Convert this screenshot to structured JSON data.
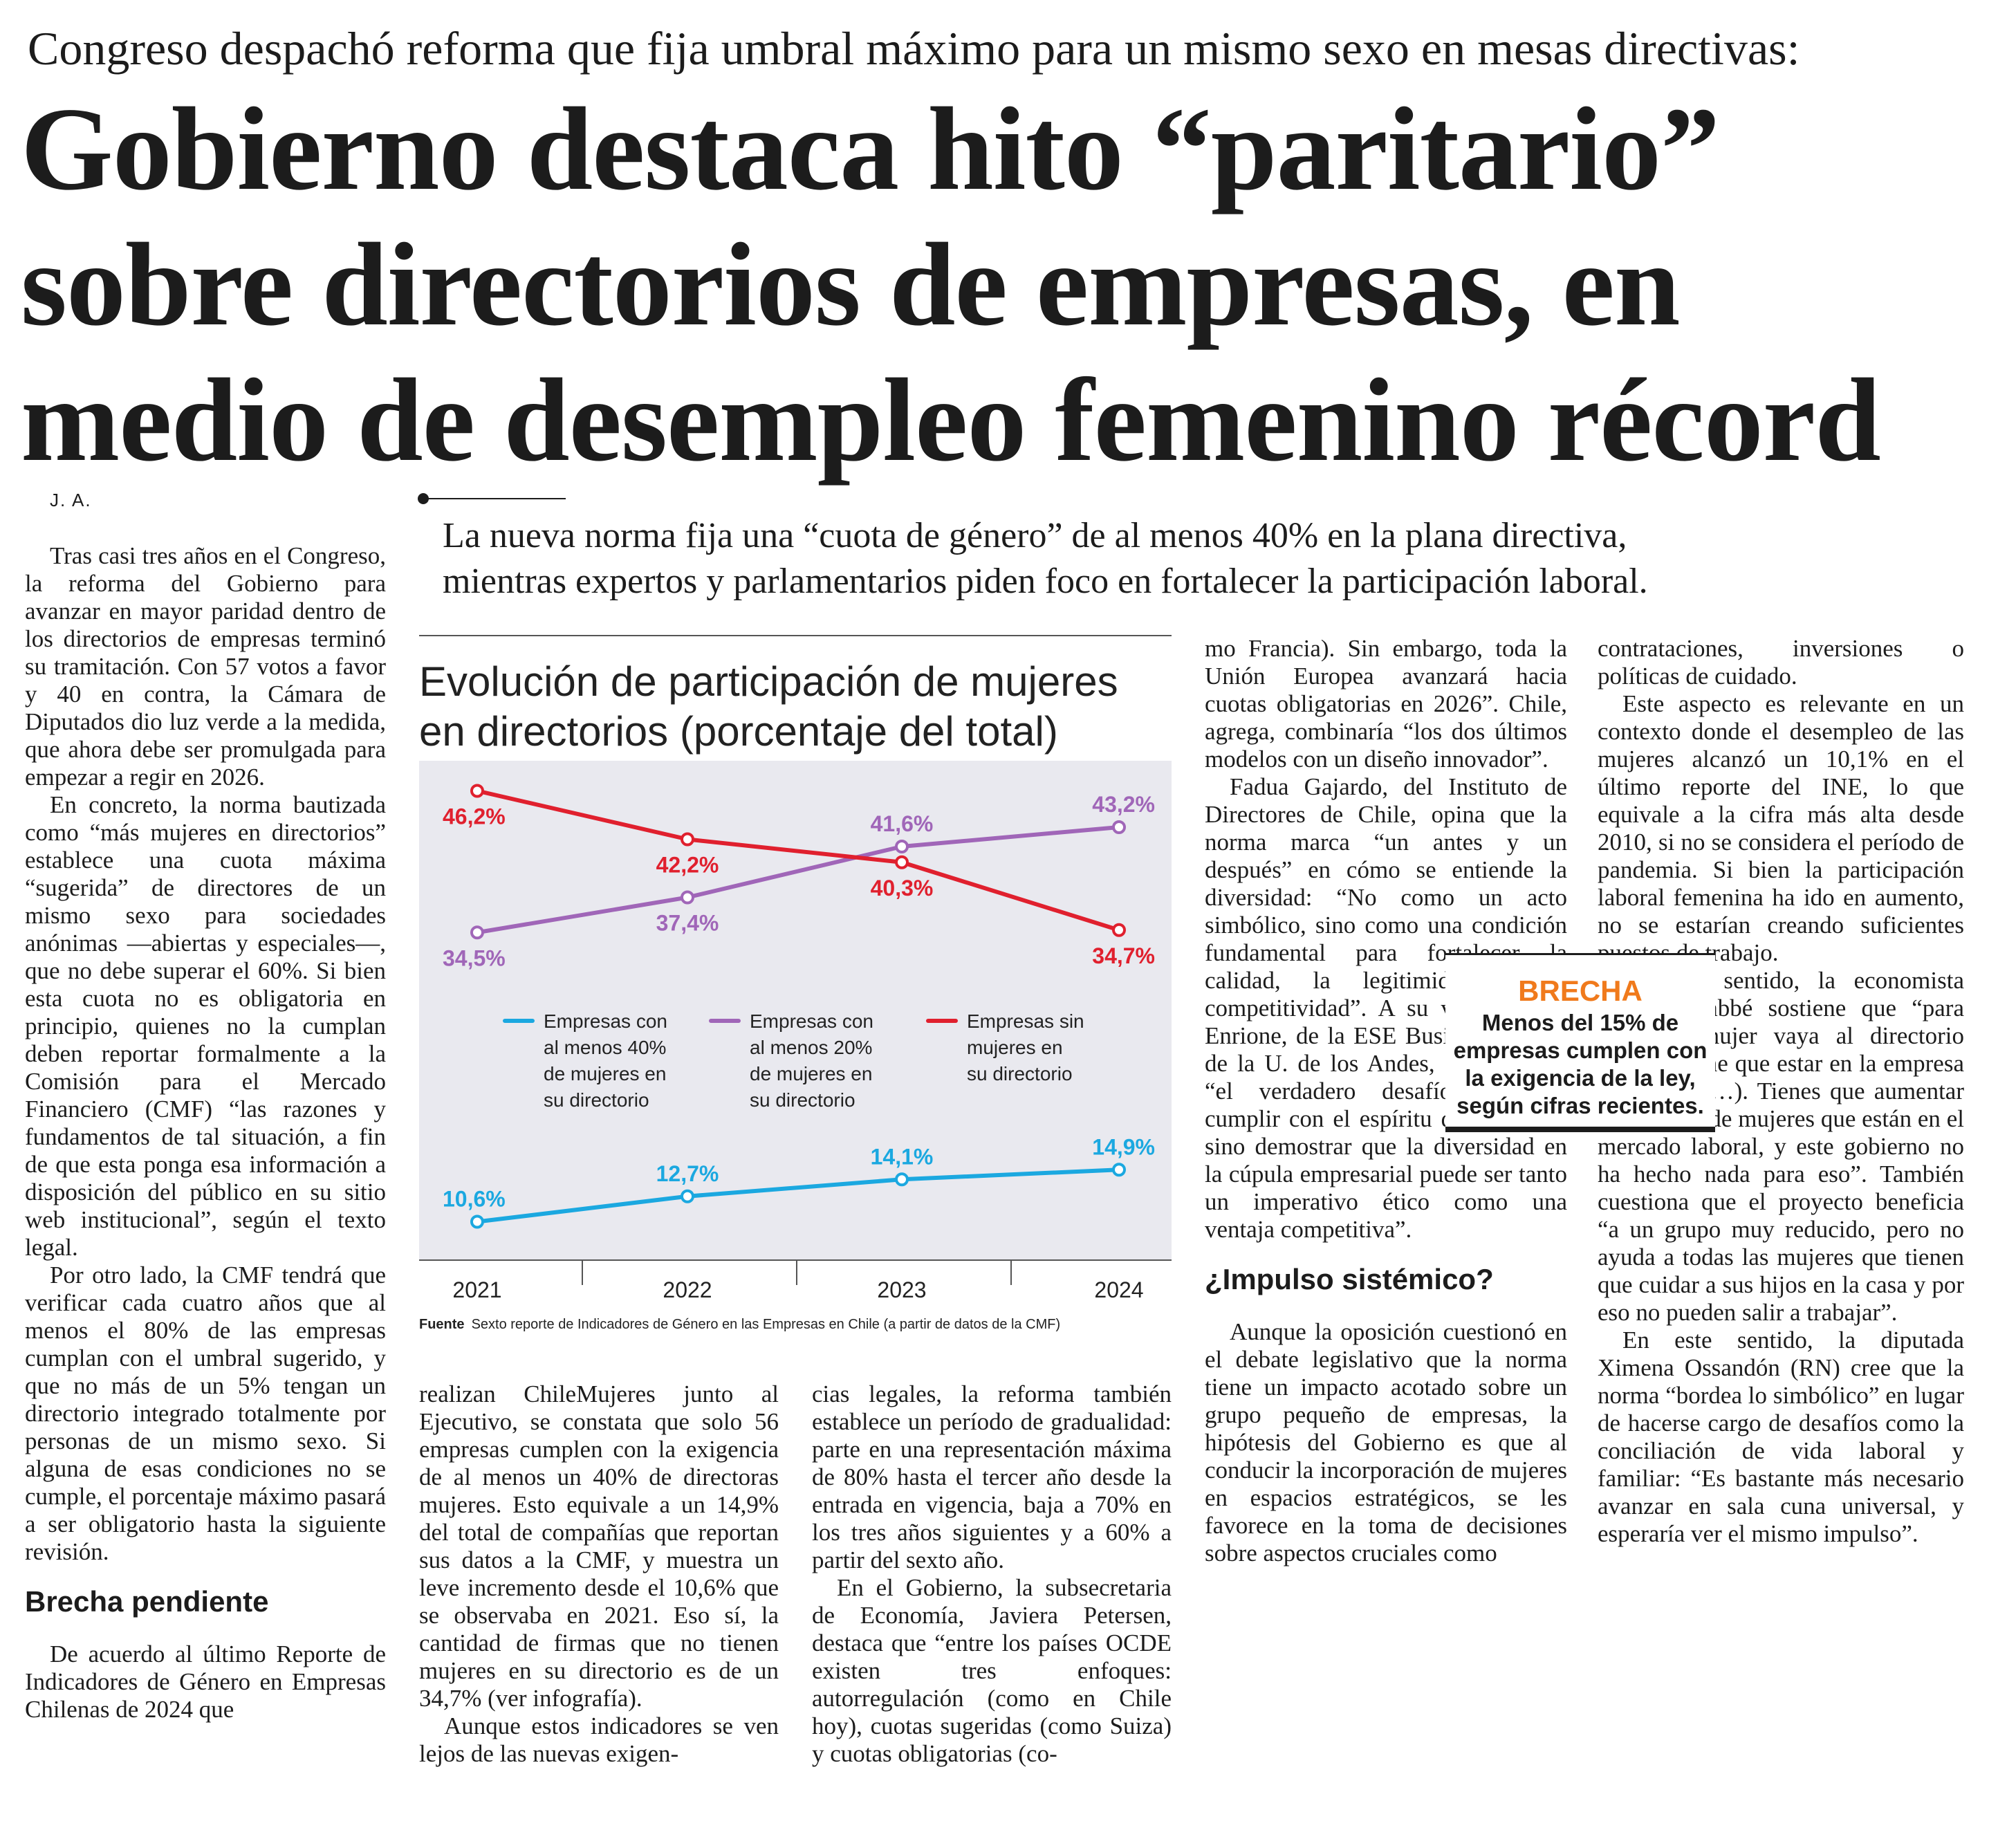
{
  "article": {
    "kicker": "Congreso despachó reforma que fija umbral máximo para un mismo sexo en mesas directivas:",
    "headline": [
      "Gobierno destaca hito “paritario”",
      "sobre directorios de empresas, en",
      "medio de desempleo femenino récord"
    ],
    "byline": "J. A.",
    "lead": [
      "La nueva norma fija una “cuota de género” de al menos 40% en la plana directiva,",
      "mientras expertos y parlamentarios piden foco en fortalecer la participación laboral."
    ]
  },
  "columns": {
    "col1": {
      "paragraphs": [
        "Tras casi tres años en el Congreso, la reforma del Gobierno para avanzar en mayor paridad dentro de los directorios de empresas terminó su tramitación. Con 57 votos a favor y 40 en contra, la Cámara de Diputados dio luz verde a la medida, que ahora debe ser promulgada para empezar a regir en 2026.",
        "En concreto, la norma bautizada como “más mujeres en directorios” establece una cuota máxima “sugerida” de directores de un mismo sexo para sociedades anónimas —abiertas y especiales—, que no debe superar el 60%. Si bien esta cuota no es obligatoria en principio, quienes no la cumplan deben reportar formalmente a la Comisión para el Mercado Financiero (CMF) “las razones y fundamentos de tal situación, a fin de que esta ponga esa información a disposición del público en su sitio web institucional”, según el texto legal.",
        "Por otro lado, la CMF tendrá que verificar cada cuatro años que al menos el 80% de las empresas cumplan con el umbral sugerido, y que no más de un 5% tengan un directorio integrado totalmente por personas de un mismo sexo. Si alguna de esas condiciones no se cumple, el porcentaje máximo pasará a ser obligatorio hasta la siguiente revisión."
      ],
      "subhead": "Brecha pendiente",
      "paragraphs_after": [
        "De acuerdo al último Reporte de Indicadores de Género en Empresas Chilenas de 2024 que"
      ]
    },
    "col2": {
      "paragraphs": [
        "realizan ChileMujeres junto al Ejecutivo, se constata que solo 56 empresas cumplen con la exigencia de al menos un 40% de directoras mujeres. Esto equivale a un 14,9% del total de compañías que reportan sus datos a la CMF, y muestra un leve incremento desde el 10,6% que se observaba en 2021. Eso sí, la cantidad de firmas que no tienen mujeres en su directorio es de un 34,7% (ver infografía).",
        "Aunque estos indicadores se ven lejos de las nuevas exigen-"
      ]
    },
    "col3": {
      "paragraphs": [
        "cias legales, la reforma también establece un período de gradualidad: parte en una representación máxima de 80% hasta el tercer año desde la entrada en vigencia, baja a 70% en los tres años siguientes y a 60% a partir del sexto año.",
        "En el Gobierno, la subsecretaria de Economía, Javiera Petersen, destaca que “entre los países OCDE existen tres enfoques: autorregulación (como en Chile hoy), cuotas sugeridas (como Suiza) y cuotas obligatorias (co-"
      ]
    },
    "col4": {
      "paragraphs": [
        "mo Francia). Sin embargo, toda la Unión Europea avanzará hacia cuotas obligatorias en 2026”. Chile, agrega, combinaría “los dos últimos modelos con un diseño innovador”.",
        "Fadua Gajardo, del Instituto de Directores de Chile, opina que la norma marca “un antes y un después” en cómo se entiende la diversidad: “No como un acto simbólico, sino como una condición fundamental para fortalecer la calidad, la legitimidad y la competitividad”. A su vez, Alfredo Enrione, de la ESE Business School de la U. de los Andes, sostiene que “el verdadero desafío no será cumplir con el espíritu de la norma, sino demostrar que la diversidad en la cúpula empresarial puede ser tanto un imperativo ético como una ventaja competitiva”."
      ],
      "subhead": "¿Impulso sistémico?",
      "paragraphs_after": [
        "Aunque la oposición cuestionó en el debate legislativo que la norma tiene un impacto acotado sobre un grupo pequeño de empresas, la hipótesis del Gobierno es que al conducir la incorporación de mujeres en espacios estratégicos, se les favorece en la toma de decisiones sobre aspectos cruciales como"
      ]
    },
    "col5": {
      "paragraphs": [
        "contrataciones, inversiones o políticas de cuidado.",
        "Este aspecto es relevante en un contexto donde el desempleo de las mujeres alcanzó un 10,1% en el último reporte del INE, lo que equivale a la cifra más alta desde 2010, si no se considera el período de pandemia. Si bien la participación laboral femenina ha ido en aumento, no se estarían creando suficientes puestos de trabajo.",
        "En este sentido, la economista Michèle Labbé sostiene que “para que una mujer vaya al directorio primero tiene que estar en la empresa y trabajar (…). Tienes que aumentar la cantidad de mujeres que están en el mercado laboral, y este gobierno no ha hecho nada para eso”. También cuestiona que el proyecto beneficia “a un grupo muy reducido, pero no ayuda a todas las mujeres que tienen que cuidar a sus hijos en la casa y por eso no pueden salir a trabajar”.",
        "En este sentido, la diputada Ximena Ossandón (RN) cree que la norma “bordea lo simbólico” en lugar de hacerse cargo de desafíos como la conciliación de vida laboral y familiar: “Es bastante más necesario avanzar en sala cuna universal, y esperaría ver el mismo impulso”."
      ]
    }
  },
  "sidebar": {
    "title": "BRECHA",
    "text": [
      "Menos del 15% de",
      "empresas cumplen con",
      "la exigencia de la ley,",
      "según cifras recientes."
    ],
    "title_color": "#f07a1c"
  },
  "chart_data": {
    "type": "line",
    "title": [
      "Evolución de participación de mujeres",
      "en directorios (porcentaje del total)"
    ],
    "x": [
      "2021",
      "2022",
      "2023",
      "2024"
    ],
    "ylim": [
      8,
      48
    ],
    "grid": false,
    "legend_placement": "middle",
    "series": [
      {
        "name": "Empresas con al menos 40% de mujeres en su directorio",
        "legend_lines": [
          "Empresas con",
          "al menos 40%",
          "de mujeres en",
          "su directorio"
        ],
        "values": [
          10.6,
          12.7,
          14.1,
          14.9
        ],
        "labels": [
          "10,6%",
          "12,7%",
          "14,1%",
          "14,9%"
        ],
        "color": "#1ba8e0"
      },
      {
        "name": "Empresas con al menos 20% de mujeres en su directorio",
        "legend_lines": [
          "Empresas con",
          "al menos 20%",
          "de mujeres en",
          "su directorio"
        ],
        "values": [
          34.5,
          37.4,
          41.6,
          43.2
        ],
        "labels": [
          "34,5%",
          "37,4%",
          "41,6%",
          "43,2%"
        ],
        "color": "#a066b8"
      },
      {
        "name": "Empresas sin mujeres en su directorio",
        "legend_lines": [
          "Empresas sin",
          "mujeres en",
          "su directorio"
        ],
        "values": [
          46.2,
          42.2,
          40.3,
          34.7
        ],
        "labels": [
          "46,2%",
          "42,2%",
          "40,3%",
          "34,7%"
        ],
        "color": "#e0202e"
      }
    ],
    "source_label": "Fuente",
    "source": "Sexto reporte de Indicadores de Género en las Empresas en Chile (a partir de datos de la CMF)",
    "background": "#e9e9ef"
  }
}
